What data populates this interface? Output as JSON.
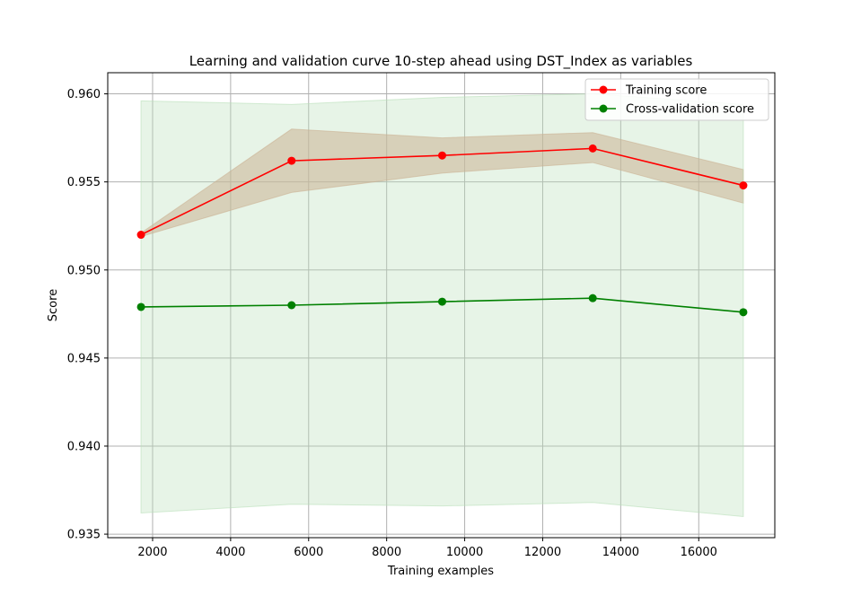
{
  "chart_data": {
    "type": "line",
    "title": "Learning and validation curve 10-step ahead using DST_Index as variables",
    "xlabel": "Training examples",
    "ylabel": "Score",
    "xlim": [
      850,
      17950
    ],
    "ylim": [
      0.9348,
      0.9612
    ],
    "xticks": [
      2000,
      4000,
      6000,
      8000,
      10000,
      12000,
      14000,
      16000
    ],
    "yticks": [
      0.935,
      0.94,
      0.945,
      0.95,
      0.955,
      0.96
    ],
    "ytick_labels": [
      "0.935",
      "0.940",
      "0.945",
      "0.950",
      "0.955",
      "0.960"
    ],
    "grid": true,
    "legend_position": "top-right",
    "x": [
      1703,
      5563,
      9423,
      13283,
      17143
    ],
    "series": [
      {
        "name": "Training score",
        "color": "#ff0000",
        "band_color": "#d49a7f",
        "values": [
          0.952,
          0.9562,
          0.9565,
          0.9569,
          0.9548
        ],
        "lower": [
          0.9519,
          0.9544,
          0.9555,
          0.9561,
          0.9538
        ],
        "upper": [
          0.9521,
          0.958,
          0.9575,
          0.9578,
          0.9557
        ]
      },
      {
        "name": "Cross-validation score",
        "color": "#008000",
        "band_color": "#b9dfb9",
        "values": [
          0.9479,
          0.948,
          0.9482,
          0.9484,
          0.9476
        ],
        "lower": [
          0.9362,
          0.9367,
          0.9366,
          0.9368,
          0.936
        ],
        "upper": [
          0.9596,
          0.9594,
          0.9598,
          0.96,
          0.9594
        ]
      }
    ]
  }
}
